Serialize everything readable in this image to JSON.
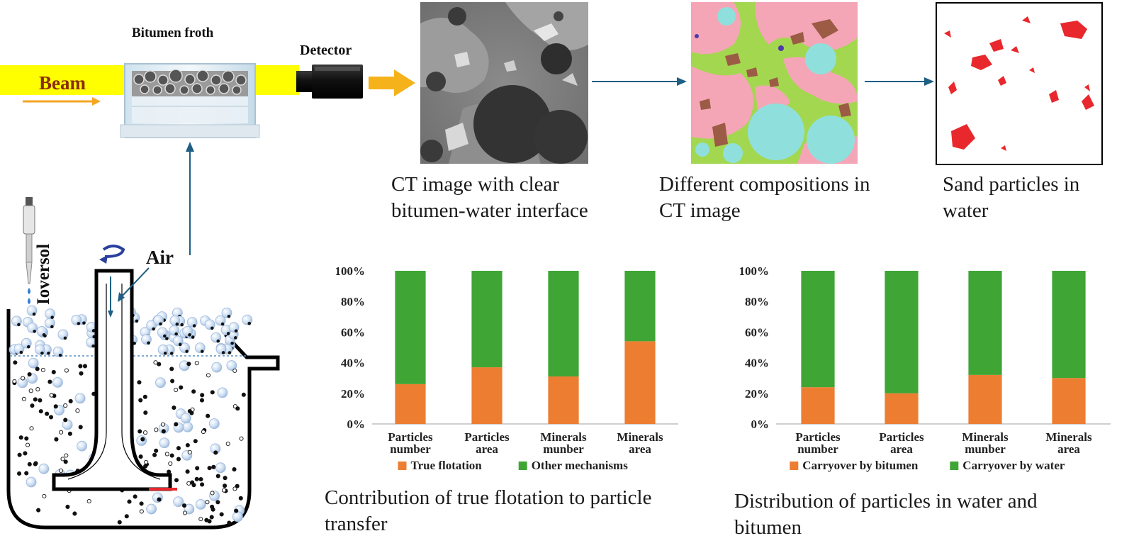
{
  "setup": {
    "froth_label": "Bitumen froth",
    "detector_label": "Detector",
    "beam_label": "Beam",
    "reagent_label": "Ioversol",
    "air_label": "Air"
  },
  "images": {
    "ct_caption": "CT image with clear\nbitumen-water interface",
    "compositions_caption": "Different compositions in\nCT image",
    "sand_caption": "Sand particles in\nwater"
  },
  "colors": {
    "beam": "#ffff00",
    "arrow_orange": "#f5b21b",
    "flow_arrow": "#1e5f85",
    "series_orange": "#ed7d31",
    "series_green": "#3fa535",
    "bitumen_pink": "#f4a6b6",
    "water_green": "#a3d74f",
    "air_cyan": "#8fe0dc",
    "mineral_brown": "#9c5b45",
    "sand_red": "#e8282d"
  },
  "chart_data": [
    {
      "type": "bar",
      "stacked": true,
      "percent_stacked": true,
      "categories": [
        "Particles\nnumber",
        "Particles\narea",
        "Minerals\nmunber",
        "Minerals\narea"
      ],
      "series": [
        {
          "name": "True flotation",
          "color": "#ed7d31",
          "values": [
            26,
            37,
            31,
            54
          ]
        },
        {
          "name": "Other mechanisms",
          "color": "#3fa535",
          "values": [
            74,
            63,
            69,
            46
          ]
        }
      ],
      "yticks": [
        "0%",
        "20%",
        "40%",
        "60%",
        "80%",
        "100%"
      ],
      "ylim": [
        0,
        100
      ],
      "legend": "bottom",
      "caption": "Contribution of true flotation to particle\ntransfer"
    },
    {
      "type": "bar",
      "stacked": true,
      "percent_stacked": true,
      "categories": [
        "Particles\nnumber",
        "Particles\narea",
        "Minerals\nmunber",
        "Minerals\narea"
      ],
      "series": [
        {
          "name": "Carryover by bitumen",
          "color": "#ed7d31",
          "values": [
            24,
            20,
            32,
            30
          ]
        },
        {
          "name": "Carryover by water",
          "color": "#3fa535",
          "values": [
            76,
            80,
            68,
            70
          ]
        }
      ],
      "yticks": [
        "0%",
        "20%",
        "40%",
        "60%",
        "80%",
        "100%"
      ],
      "ylim": [
        0,
        100
      ],
      "legend": "bottom",
      "caption": "Distribution of particles in water and\nbitumen"
    }
  ]
}
